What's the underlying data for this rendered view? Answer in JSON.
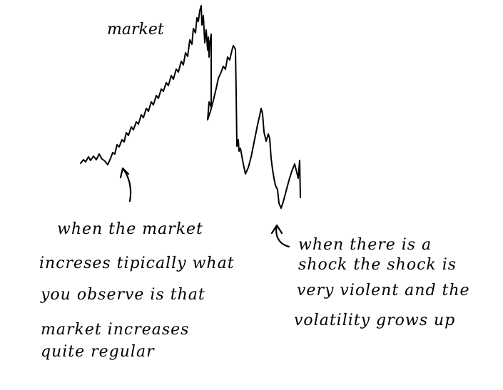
{
  "sketch": {
    "title": "market",
    "left_note": [
      "when the market",
      "increses tipically what",
      "you observe is that",
      "market increases",
      "quite regular"
    ],
    "right_note": [
      "when there is a",
      "shock the shock is",
      "very violent and the",
      "volatility grows up"
    ]
  },
  "colors": {
    "background": "#ffffff",
    "ink": "#000000"
  },
  "icons": {
    "left_arrow": "curved-up-arrow-icon",
    "right_arrow": "hook-up-arrow-icon"
  }
}
